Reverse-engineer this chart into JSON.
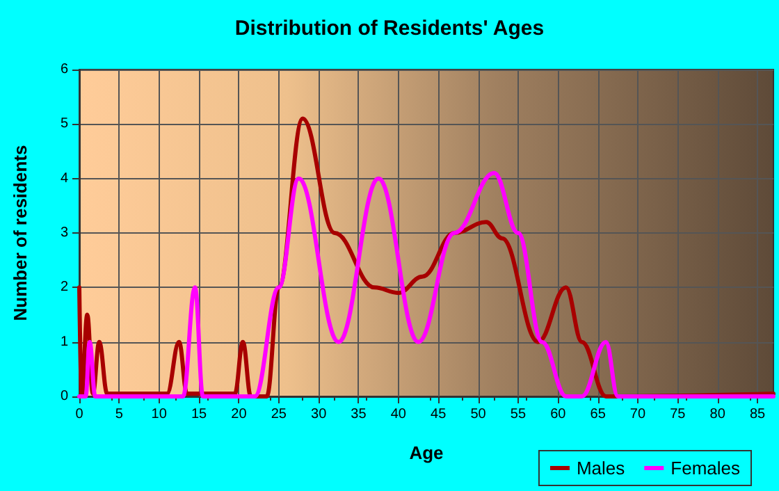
{
  "chart_data": {
    "type": "line",
    "title": "Distribution of Residents' Ages",
    "xlabel": "Age",
    "ylabel": "Number of residents",
    "xlim": [
      0,
      87
    ],
    "xticks": [
      0,
      5,
      10,
      15,
      20,
      25,
      30,
      35,
      40,
      45,
      50,
      55,
      60,
      65,
      70,
      75,
      80,
      85
    ],
    "ylim": [
      0,
      6
    ],
    "yticks": [
      0,
      1,
      2,
      3,
      4,
      5,
      6
    ],
    "grid": true,
    "legend": "bottom right",
    "marker": "none",
    "line_style": "solid",
    "series": [
      {
        "name": "Males",
        "color": "#a80000",
        "x": [
          0,
          0.3,
          1,
          1.7,
          2.5,
          3.5,
          11,
          12.5,
          13.5,
          19.5,
          20.5,
          21.5,
          23.5,
          25,
          28,
          32,
          37,
          40,
          43,
          47,
          51,
          53,
          57.5,
          61,
          63,
          66,
          87
        ],
        "values": [
          2,
          0,
          1.5,
          0.05,
          1,
          0.05,
          0.05,
          1,
          0.05,
          0.05,
          1,
          0,
          0,
          2,
          5.1,
          3,
          2,
          1.9,
          2.2,
          3,
          3.2,
          2.9,
          1,
          2,
          1,
          0,
          0.05
        ]
      },
      {
        "name": "Females",
        "color": "#ff00ff",
        "x": [
          0,
          0.8,
          1.3,
          2,
          13,
          14.5,
          15.5,
          22,
          25,
          27.5,
          32.5,
          37.5,
          42.5,
          47,
          52,
          55,
          58,
          61,
          63,
          66,
          67.5,
          87
        ],
        "values": [
          0,
          0,
          1,
          0,
          0,
          2,
          0,
          0,
          2,
          4,
          1,
          4,
          1,
          3,
          4.1,
          3,
          1,
          0,
          0,
          1,
          0,
          0
        ]
      }
    ]
  }
}
